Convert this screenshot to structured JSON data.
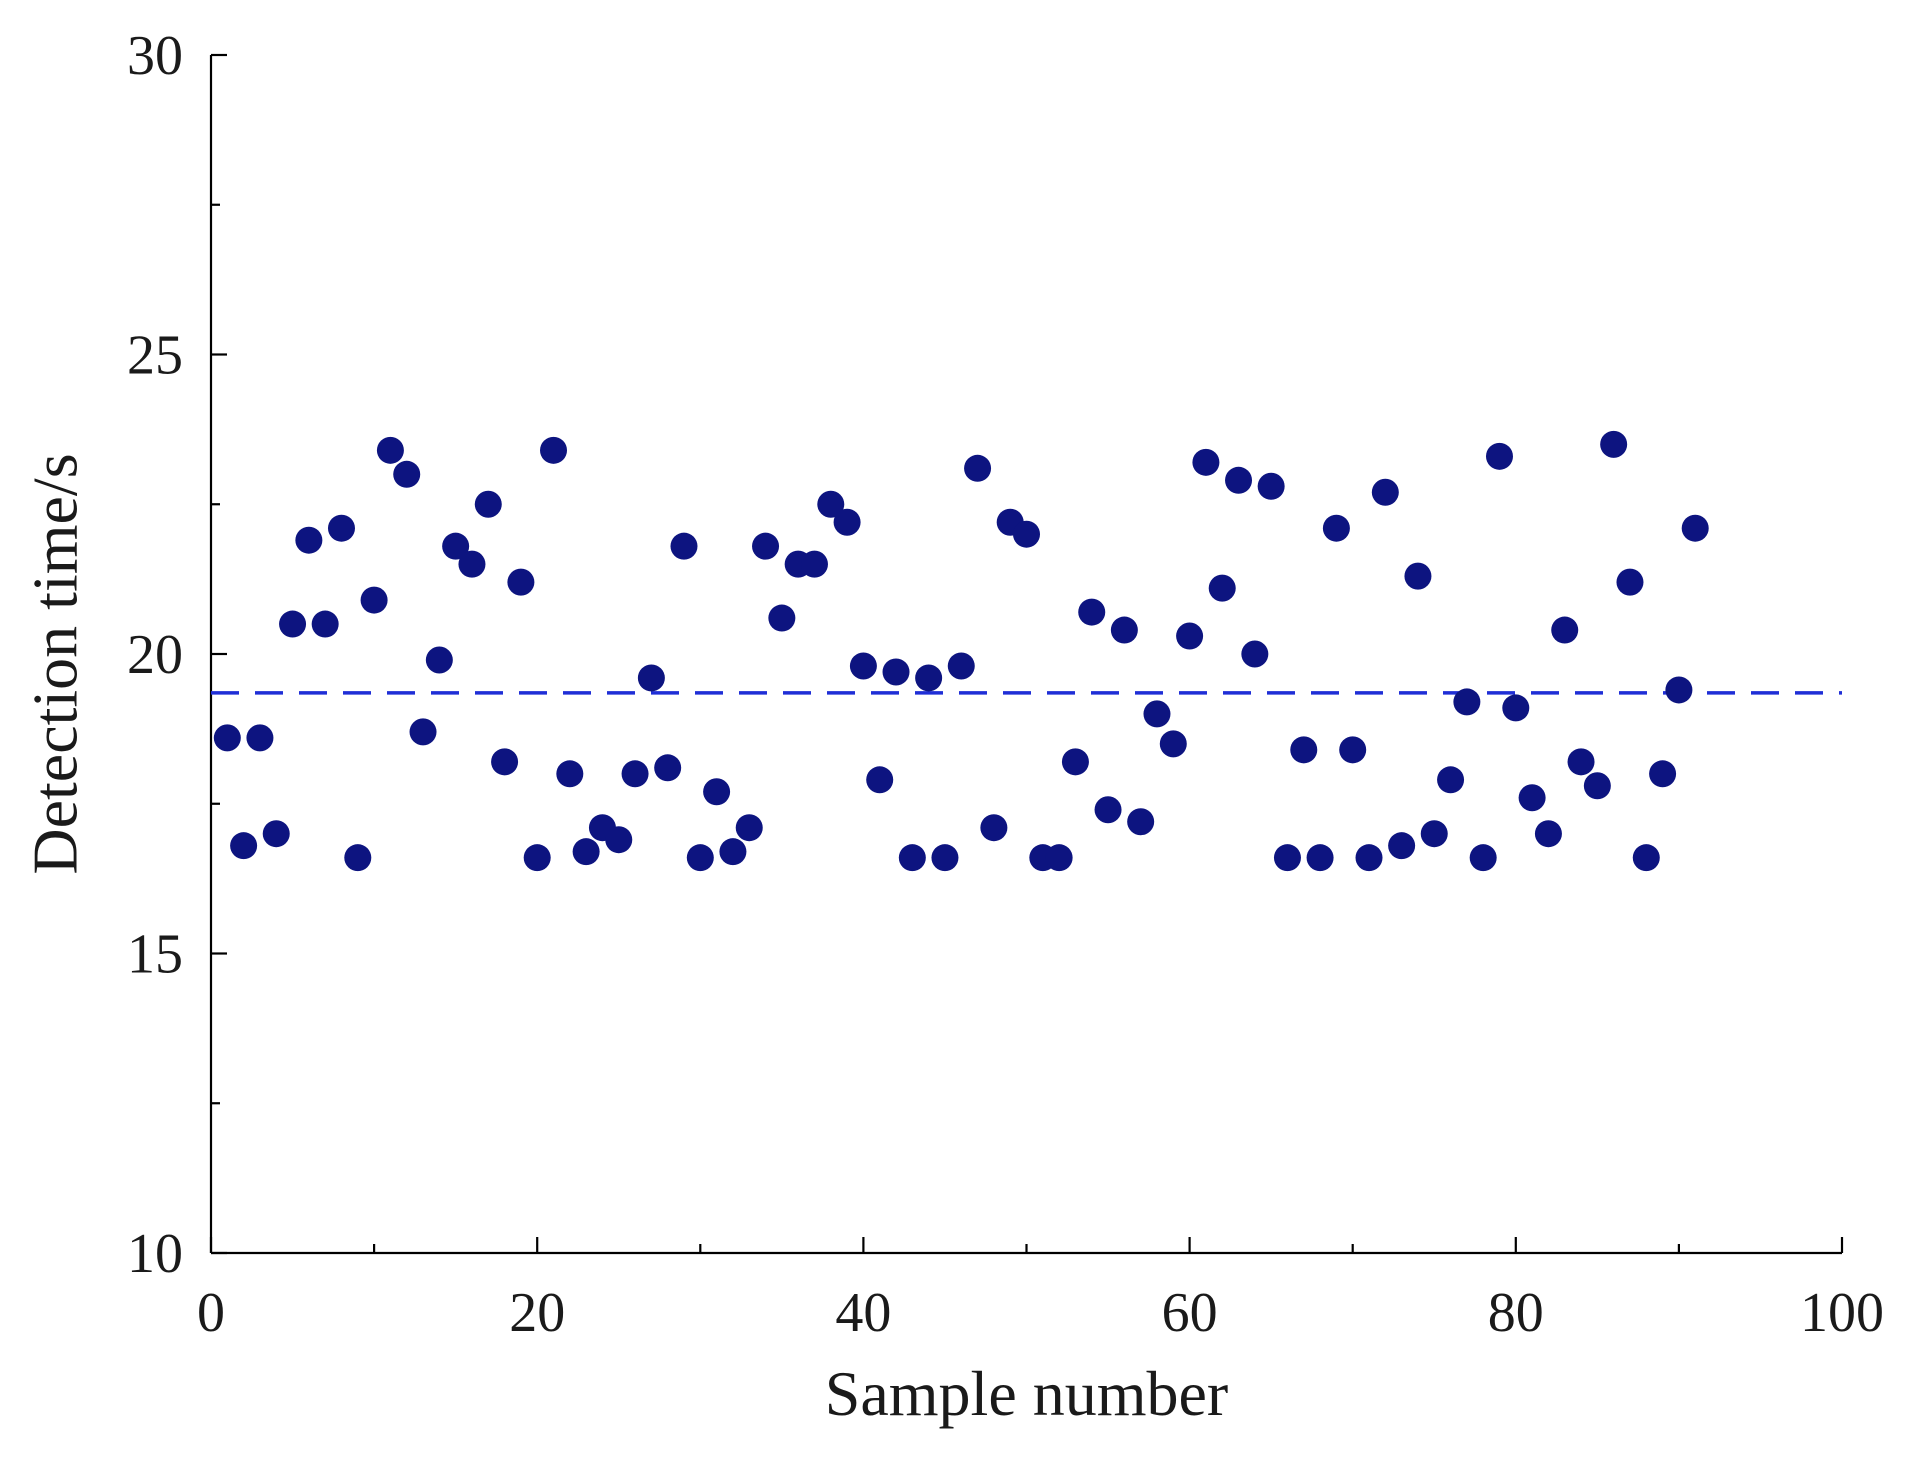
{
  "chart_data": {
    "type": "scatter",
    "title": "",
    "xlabel": "Sample number",
    "ylabel": "Detection time/s",
    "xlim": [
      0,
      100
    ],
    "ylim": [
      10,
      30
    ],
    "x_ticks": [
      0,
      20,
      40,
      60,
      80,
      100
    ],
    "x_tick_labels": [
      "0",
      "20",
      "40",
      "60",
      "80",
      "100"
    ],
    "x_minor_ticks": [
      10,
      30,
      50,
      70,
      90
    ],
    "y_ticks": [
      10,
      15,
      20,
      25,
      30
    ],
    "y_tick_labels": [
      "10",
      "15",
      "20",
      "25",
      "30"
    ],
    "y_minor_ticks": [
      12.5,
      17.5,
      22.5,
      27.5
    ],
    "grid": false,
    "legend": "none",
    "colors": {
      "points": "#0d1480",
      "reference_line": "#1f2ed6",
      "axes": "#000000"
    },
    "series": [
      {
        "x": [
          1,
          2,
          3,
          4,
          5,
          6,
          7,
          8,
          9,
          10,
          11,
          12,
          13,
          14,
          15,
          16,
          17,
          18,
          19,
          20,
          21,
          22,
          23,
          24,
          25,
          26,
          27,
          28,
          29,
          30,
          31,
          32,
          33,
          34,
          35,
          36,
          37,
          38,
          39,
          40,
          41,
          42,
          43,
          44,
          45,
          46,
          47,
          48,
          49,
          50,
          51,
          52,
          53,
          54,
          55,
          56,
          57,
          58,
          59,
          60,
          61,
          62,
          63,
          64,
          65,
          66,
          67,
          68,
          69,
          70,
          71,
          72,
          73,
          74,
          75,
          76,
          77,
          78,
          79,
          80,
          81,
          82,
          83,
          84,
          85,
          86,
          87,
          88,
          89,
          90,
          91
        ],
        "y": [
          18.6,
          16.8,
          18.6,
          17.0,
          20.5,
          21.9,
          20.5,
          22.1,
          16.6,
          20.9,
          23.4,
          23.0,
          18.7,
          19.9,
          21.8,
          21.5,
          22.5,
          18.2,
          21.2,
          16.6,
          23.4,
          18.0,
          16.7,
          17.1,
          16.9,
          18.0,
          19.6,
          18.1,
          21.8,
          16.6,
          17.7,
          16.7,
          17.1,
          21.8,
          20.6,
          21.5,
          21.5,
          22.5,
          22.2,
          19.8,
          17.9,
          19.7,
          16.6,
          19.6,
          16.6,
          19.8,
          23.1,
          17.1,
          22.2,
          22.0,
          16.6,
          16.6,
          18.2,
          20.7,
          17.4,
          20.4,
          17.2,
          19.0,
          18.5,
          20.3,
          23.2,
          21.1,
          22.9,
          20.0,
          22.8,
          16.6,
          18.4,
          16.6,
          22.1,
          18.4,
          16.6,
          22.7,
          16.8,
          21.3,
          17.0,
          17.9,
          19.2,
          16.6,
          23.3,
          19.1,
          17.6,
          17.0,
          20.4,
          18.2,
          17.8,
          23.5,
          21.2,
          16.6,
          18.0,
          19.4,
          22.1
        ]
      }
    ],
    "reference_line": {
      "y": 19.35,
      "style": "dashed"
    }
  }
}
